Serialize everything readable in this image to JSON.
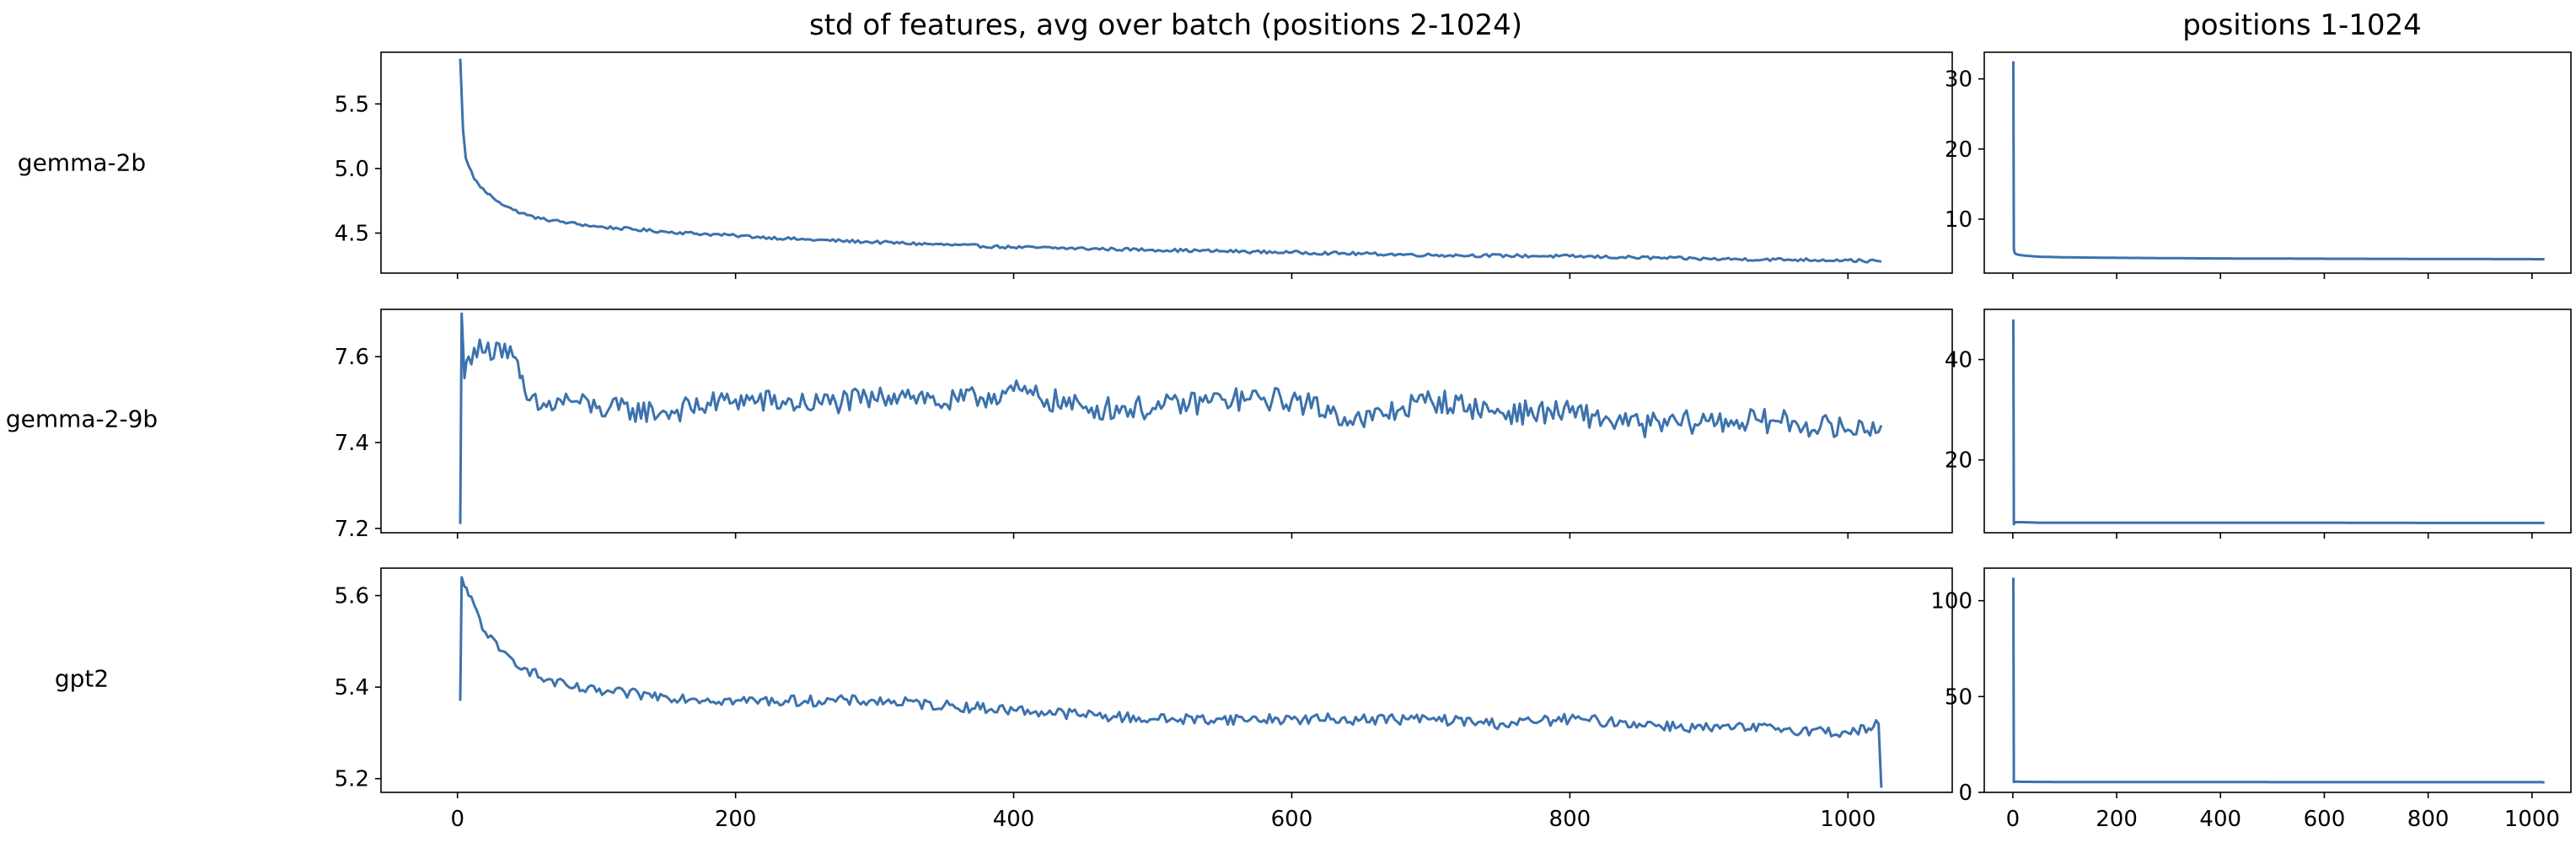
{
  "figure": {
    "main_title": "std of features, avg over batch (positions 2-1024)",
    "side_title": "positions 1-1024",
    "row_labels": [
      "gemma-2b",
      "gemma-2-9b",
      "gpt2"
    ],
    "line_color": "#3c72ad"
  },
  "chart_data": [
    {
      "type": "line",
      "title": "std of features, avg over batch (positions 2-1024)",
      "model": "gemma-2b",
      "xlim": [
        -55,
        1075
      ],
      "ylim": [
        4.19,
        5.9
      ],
      "xticks": [
        0,
        200,
        400,
        600,
        800,
        1000
      ],
      "show_xticklabels": false,
      "yticks": [
        4.5,
        5.0,
        5.5
      ],
      "ytick_labels": [
        "4.5",
        "5.0",
        "5.5"
      ],
      "series": [
        {
          "x": [
            2,
            4,
            6,
            8,
            10,
            12,
            15,
            20,
            25,
            30,
            40,
            50,
            60,
            80,
            100,
            150,
            200,
            250,
            300,
            400,
            500,
            600,
            700,
            800,
            900,
            1000,
            1024
          ],
          "y": [
            5.85,
            5.3,
            5.08,
            5.02,
            4.98,
            4.92,
            4.88,
            4.82,
            4.78,
            4.74,
            4.68,
            4.64,
            4.61,
            4.58,
            4.55,
            4.51,
            4.48,
            4.45,
            4.43,
            4.39,
            4.37,
            4.35,
            4.33,
            4.32,
            4.3,
            4.29,
            4.28
          ]
        }
      ]
    },
    {
      "type": "line",
      "title": "",
      "model": "gemma-2-9b",
      "xlim": [
        -55,
        1075
      ],
      "ylim": [
        7.19,
        7.71
      ],
      "xticks": [
        0,
        200,
        400,
        600,
        800,
        1000
      ],
      "show_xticklabels": false,
      "yticks": [
        7.2,
        7.4,
        7.6
      ],
      "ytick_labels": [
        "7.2",
        "7.4",
        "7.6"
      ],
      "series": [
        {
          "x": [
            2,
            3,
            5,
            8,
            12,
            20,
            30,
            40,
            45,
            50,
            60,
            80,
            100,
            150,
            200,
            250,
            300,
            320,
            350,
            400,
            450,
            500,
            550,
            600,
            650,
            700,
            750,
            800,
            850,
            900,
            950,
            1000,
            1024
          ],
          "y": [
            7.21,
            7.7,
            7.55,
            7.6,
            7.62,
            7.61,
            7.63,
            7.6,
            7.55,
            7.5,
            7.48,
            7.5,
            7.48,
            7.47,
            7.5,
            7.49,
            7.5,
            7.52,
            7.49,
            7.52,
            7.48,
            7.48,
            7.5,
            7.5,
            7.45,
            7.5,
            7.47,
            7.47,
            7.44,
            7.45,
            7.45,
            7.43,
            7.44
          ]
        }
      ]
    },
    {
      "type": "line",
      "title": "",
      "model": "gpt2",
      "xlim": [
        -55,
        1075
      ],
      "ylim": [
        5.17,
        5.66
      ],
      "xticks": [
        0,
        200,
        400,
        600,
        800,
        1000
      ],
      "xtick_labels": [
        "0",
        "200",
        "400",
        "600",
        "800",
        "1000"
      ],
      "show_xticklabels": true,
      "yticks": [
        5.2,
        5.4,
        5.6
      ],
      "ytick_labels": [
        "5.2",
        "5.4",
        "5.6"
      ],
      "series": [
        {
          "x": [
            2,
            3,
            5,
            8,
            12,
            20,
            30,
            40,
            50,
            60,
            80,
            100,
            150,
            200,
            250,
            300,
            350,
            400,
            450,
            500,
            550,
            600,
            650,
            700,
            750,
            800,
            850,
            900,
            950,
            1000,
            1015,
            1022,
            1024
          ],
          "y": [
            5.37,
            5.64,
            5.62,
            5.6,
            5.58,
            5.52,
            5.48,
            5.46,
            5.44,
            5.42,
            5.4,
            5.39,
            5.38,
            5.37,
            5.37,
            5.37,
            5.36,
            5.35,
            5.34,
            5.33,
            5.33,
            5.33,
            5.33,
            5.33,
            5.32,
            5.33,
            5.32,
            5.31,
            5.31,
            5.3,
            5.31,
            5.32,
            5.18
          ]
        }
      ]
    },
    {
      "type": "line",
      "title": "positions 1-1024",
      "model": "gemma-2b",
      "xlim": [
        -55,
        1075
      ],
      "ylim": [
        2.3,
        33.8
      ],
      "xticks": [
        0,
        200,
        400,
        600,
        800,
        1000
      ],
      "show_xticklabels": false,
      "yticks": [
        10,
        20,
        30
      ],
      "ytick_labels": [
        "10",
        "20",
        "30"
      ],
      "series": [
        {
          "x": [
            1,
            2,
            3,
            5,
            8,
            12,
            20,
            30,
            50,
            100,
            200,
            400,
            600,
            800,
            1000,
            1024
          ],
          "y": [
            32.5,
            5.85,
            5.3,
            5.05,
            4.98,
            4.9,
            4.82,
            4.75,
            4.64,
            4.55,
            4.48,
            4.39,
            4.35,
            4.32,
            4.29,
            4.28
          ]
        }
      ]
    },
    {
      "type": "line",
      "title": "",
      "model": "gemma-2-9b",
      "xlim": [
        -55,
        1075
      ],
      "ylim": [
        5.5,
        50.0
      ],
      "xticks": [
        0,
        200,
        400,
        600,
        800,
        1000
      ],
      "show_xticklabels": false,
      "yticks": [
        20,
        40
      ],
      "ytick_labels": [
        "20",
        "40"
      ],
      "series": [
        {
          "x": [
            1,
            2,
            5,
            10,
            20,
            50,
            100,
            200,
            400,
            600,
            800,
            1000,
            1024
          ],
          "y": [
            48,
            7.2,
            7.6,
            7.6,
            7.6,
            7.5,
            7.5,
            7.5,
            7.5,
            7.5,
            7.45,
            7.44,
            7.44
          ]
        }
      ]
    },
    {
      "type": "line",
      "title": "",
      "model": "gpt2",
      "xlim": [
        -55,
        1075
      ],
      "ylim": [
        0,
        117
      ],
      "xticks": [
        0,
        200,
        400,
        600,
        800,
        1000
      ],
      "xtick_labels": [
        "0",
        "200",
        "400",
        "600",
        "800",
        "1000"
      ],
      "show_xticklabels": true,
      "yticks": [
        0,
        50,
        100
      ],
      "ytick_labels": [
        "0",
        "50",
        "100"
      ],
      "series": [
        {
          "x": [
            1,
            2,
            5,
            20,
            100,
            300,
            600,
            900,
            1020,
            1024
          ],
          "y": [
            112,
            5.4,
            5.6,
            5.5,
            5.4,
            5.37,
            5.33,
            5.31,
            5.32,
            5.18
          ]
        }
      ]
    }
  ]
}
